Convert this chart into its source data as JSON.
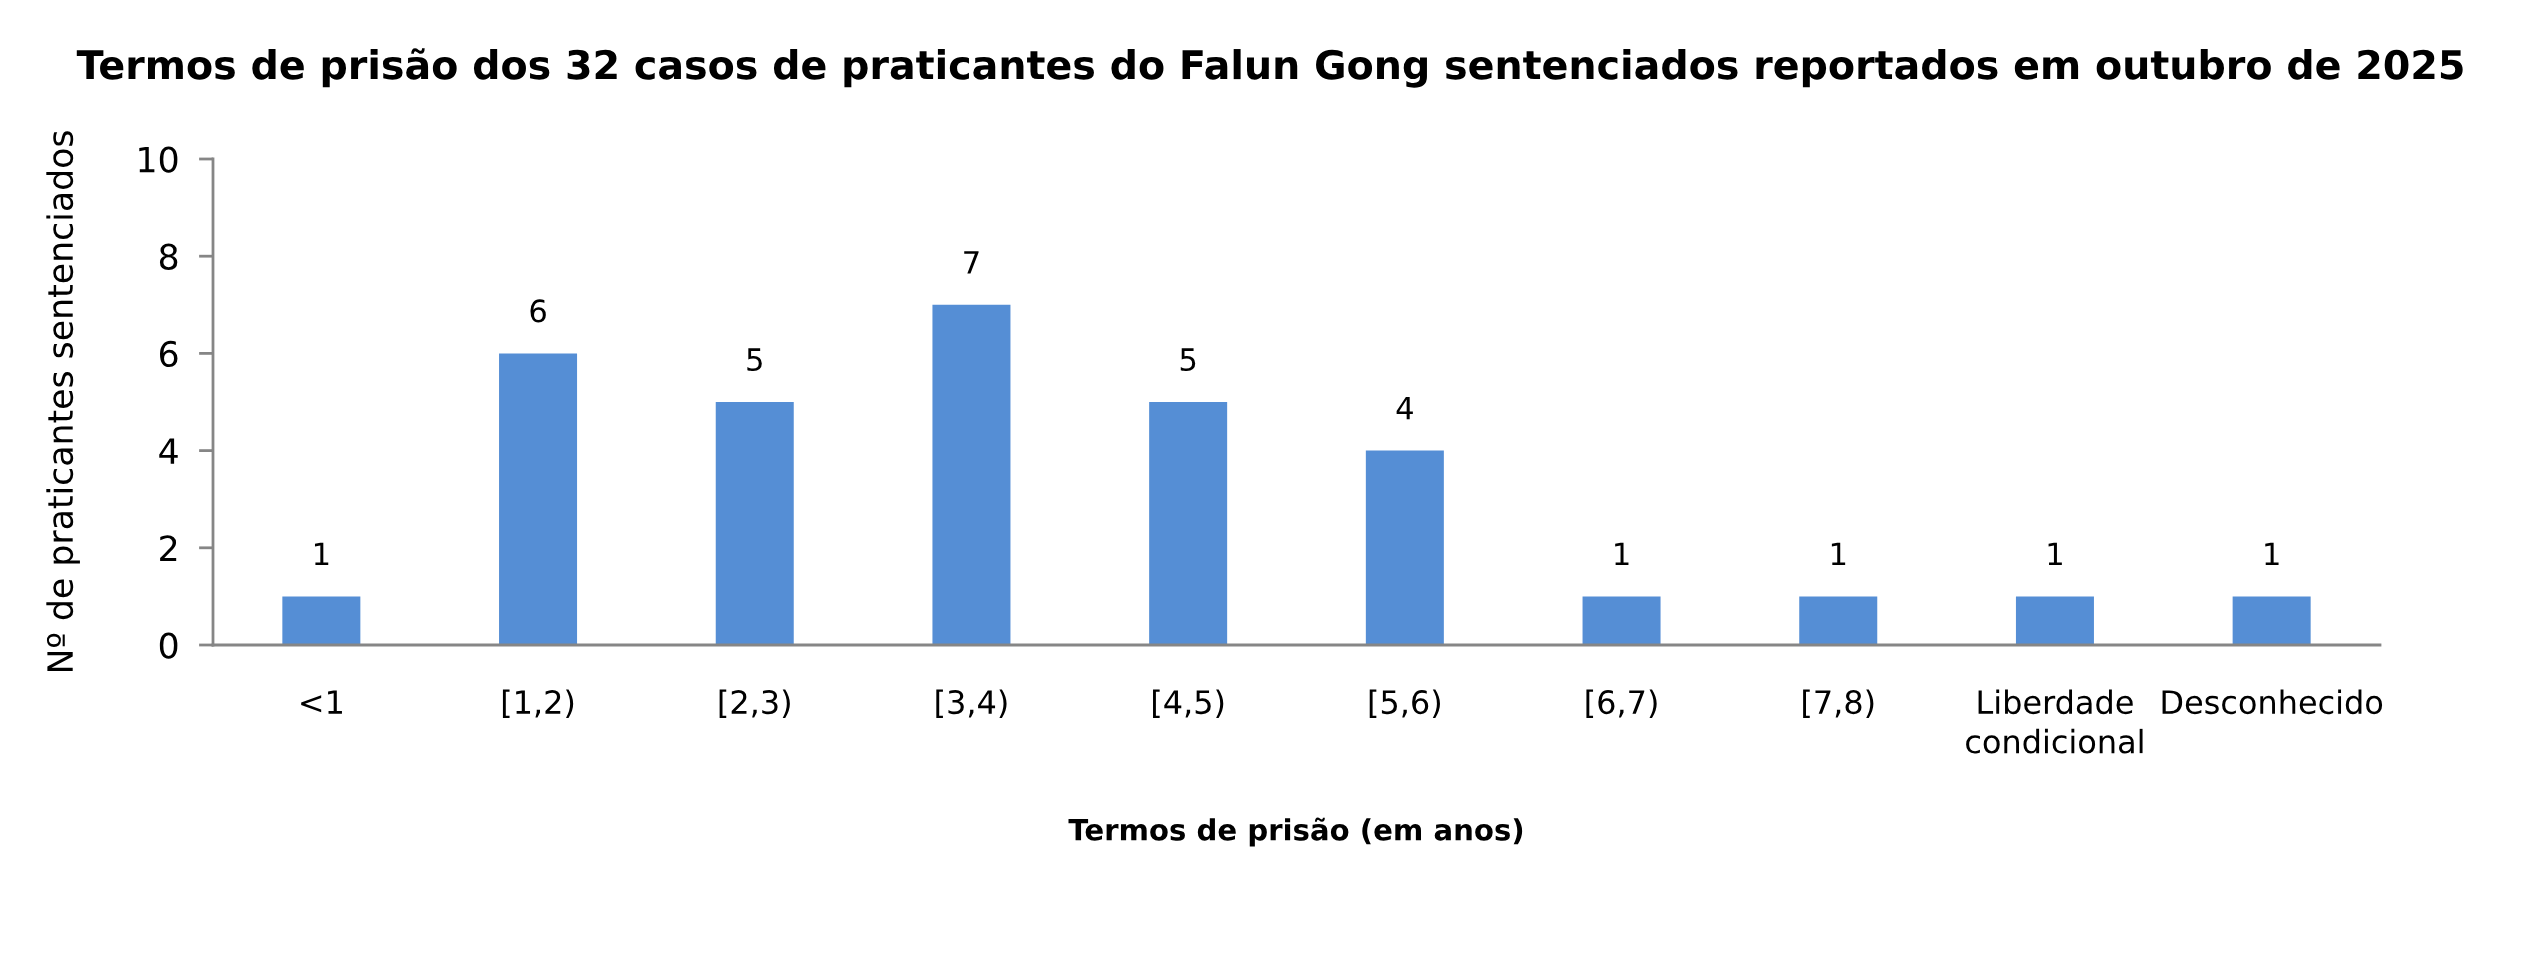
{
  "chart_data": {
    "type": "bar",
    "title": "Termos de prisão dos 32 casos de praticantes do Falun Gong sentenciados reportados em outubro de 2025",
    "xlabel": "Termos de prisão (em anos)",
    "ylabel": "Nº de praticantes sentenciados",
    "categories": [
      "<1",
      "[1,2)",
      "[2,3)",
      "[3,4)",
      "[4,5)",
      "[5,6)",
      "[6,7)",
      "[7,8)",
      "Liberdade\ncondicional",
      "Desconhecido"
    ],
    "values": [
      1,
      6,
      5,
      7,
      5,
      4,
      1,
      1,
      1,
      1
    ],
    "color": "#558ed5",
    "ylim": [
      0,
      10
    ],
    "yticks": [
      0,
      2,
      4,
      6,
      8,
      10
    ],
    "grid": false,
    "legend": false,
    "data_labels": true
  }
}
